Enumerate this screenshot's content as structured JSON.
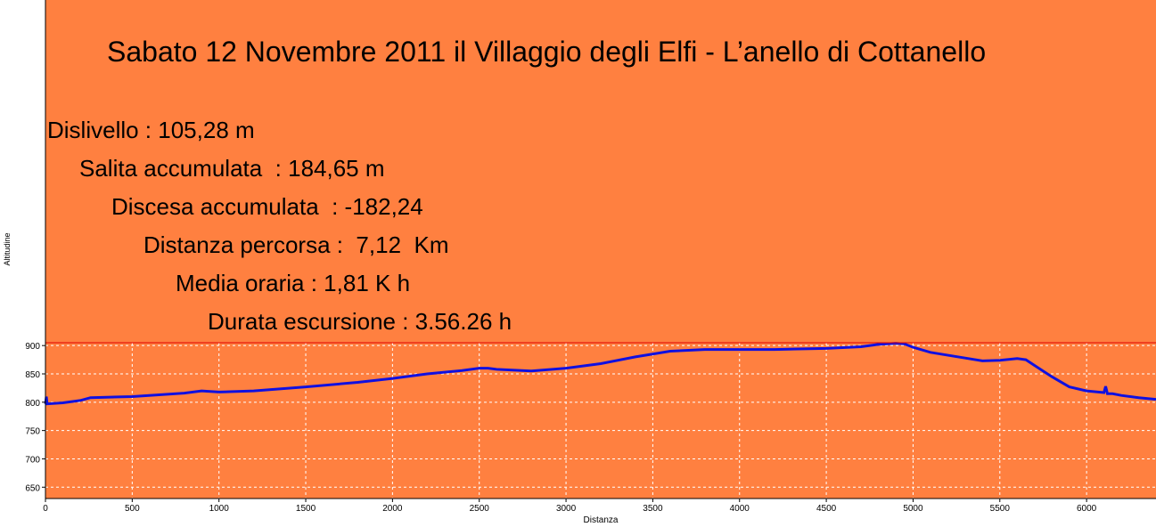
{
  "colors": {
    "panel": "#ff8040",
    "line": "#1010e0",
    "border": "#e00000",
    "grid": "#ffffff"
  },
  "overlay": {
    "title": "Sabato 12 Novembre 2011 il Villaggio degli Elfi - L’anello di Cottanello",
    "stats": [
      "Dislivello : 105,28 m",
      "Salita accumulata  : 184,65 m",
      "Discesa accumulata  : -182,24",
      "Distanza percorsa :  7,12  Km",
      "Media oraria : 1,81 K h",
      "Durata escursione : 3.56.26 h"
    ]
  },
  "chart_data": {
    "type": "line",
    "xlabel": "Distanza",
    "ylabel": "Altitudine",
    "xlim": [
      0,
      6400
    ],
    "ylim": [
      630,
      905
    ],
    "xticks": [
      0,
      500,
      1000,
      1500,
      2000,
      2500,
      3000,
      3500,
      4000,
      4500,
      5000,
      5500,
      6000
    ],
    "yticks": [
      650,
      700,
      750,
      800,
      850,
      900
    ],
    "grid": true,
    "series": [
      {
        "x": [
          0,
          5,
          10,
          100,
          200,
          260,
          500,
          800,
          900,
          1000,
          1200,
          1500,
          1800,
          2000,
          2200,
          2400,
          2500,
          2550,
          2600,
          2800,
          3000,
          3200,
          3400,
          3600,
          3800,
          4000,
          4200,
          4500,
          4700,
          4800,
          4900,
          4950,
          5000,
          5100,
          5300,
          5400,
          5500,
          5600,
          5650,
          5700,
          5800,
          5900,
          6000,
          6100,
          6110,
          6120,
          6150,
          6200,
          6300,
          6400
        ],
        "y": [
          797,
          810,
          797,
          799,
          803,
          808,
          810,
          816,
          820,
          818,
          820,
          827,
          835,
          842,
          850,
          856,
          860,
          860,
          858,
          855,
          860,
          868,
          880,
          890,
          893,
          893,
          893,
          895,
          898,
          902,
          904,
          903,
          897,
          888,
          878,
          873,
          874,
          877,
          875,
          865,
          845,
          827,
          820,
          817,
          828,
          815,
          815,
          812,
          808,
          805
        ]
      }
    ]
  }
}
